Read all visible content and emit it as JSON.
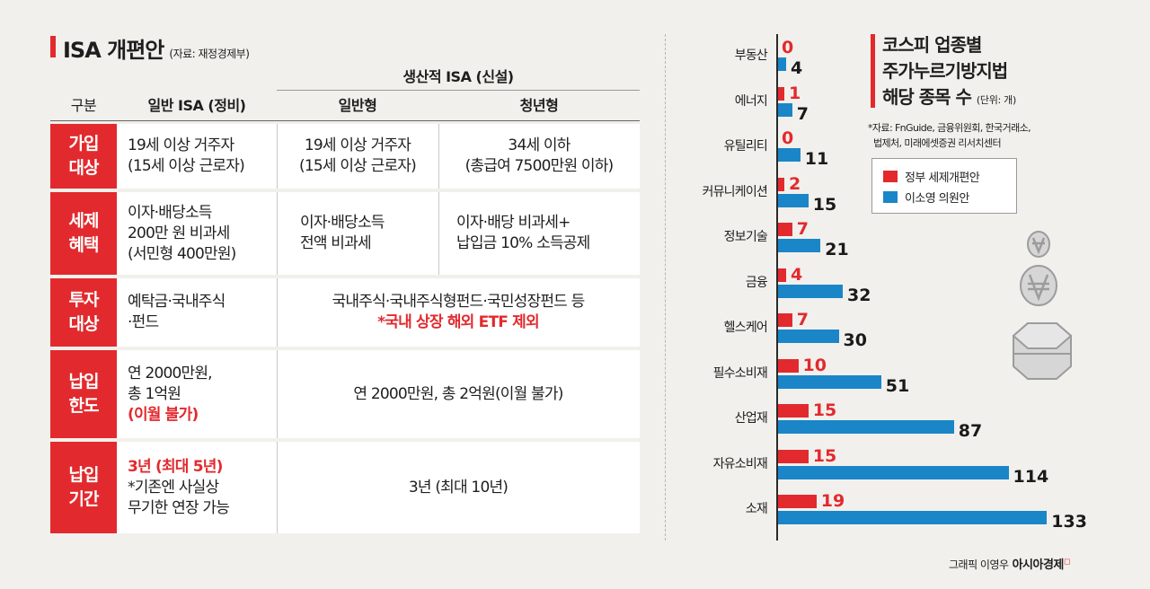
{
  "isa_table": {
    "title": "ISA 개편안",
    "source": "(자료: 재정경제부)",
    "group_header": "생산적 ISA (신설)",
    "headers": [
      "구분",
      "일반 ISA (정비)",
      "일반형",
      "청년형"
    ],
    "rows": [
      {
        "label": "가입\n대상",
        "general": [
          "19세 이상 거주자",
          "(15세 이상 근로자)"
        ],
        "prod_general": [
          "19세 이상 거주자",
          "(15세 이상 근로자)"
        ],
        "prod_youth": [
          "34세 이하",
          "(총급여 7500만원 이하)"
        ]
      },
      {
        "label": "세제\n혜택",
        "general": [
          "이자·배당소득",
          "200만 원 비과세",
          "(서민형 400만원)"
        ],
        "prod_general": [
          "이자·배당소득",
          "전액 비과세"
        ],
        "prod_youth": [
          "이자·배당 비과세+",
          "납입금 10% 소득공제"
        ]
      },
      {
        "label": "투자\n대상",
        "general": [
          "예탁금·국내주식",
          "·펀드"
        ],
        "merged": "국내주식·국내주식형펀드·국민성장펀드 등",
        "merged_note": "*국내 상장 해외 ETF 제외"
      },
      {
        "label": "납입\n한도",
        "general": [
          "연 2000만원,",
          "총 1억원"
        ],
        "general_note": "(이월 불가)",
        "merged": "연 2000만원, 총 2억원(이월 불가)"
      },
      {
        "label": "납입\n기간",
        "general_note": "3년 (최대 5년)",
        "general": [
          "*기존엔 사실상",
          "무기한 연장 가능"
        ],
        "merged": "3년 (최대 10년)"
      }
    ]
  },
  "chart_data": {
    "type": "bar",
    "title": [
      "코스피 업종별",
      "주가누르기방지법",
      "해당 종목 수"
    ],
    "unit": "(단위: 개)",
    "source": [
      "*자료: FnGuide, 금융위원회, 한국거래소,",
      "법제처, 미래에셋증권 리서치센터"
    ],
    "orientation": "horizontal",
    "categories": [
      "부동산",
      "에너지",
      "유틸리티",
      "커뮤니케이션",
      "정보기술",
      "금융",
      "헬스케어",
      "필수소비재",
      "산업재",
      "자유소비재",
      "소재"
    ],
    "series": [
      {
        "name": "정부 세제개편안",
        "color": "#e22a2e",
        "values": [
          0,
          1,
          0,
          2,
          7,
          4,
          7,
          10,
          15,
          15,
          19
        ]
      },
      {
        "name": "이소영 의원안",
        "color": "#1a86c8",
        "values": [
          4,
          7,
          11,
          15,
          21,
          32,
          30,
          51,
          87,
          114,
          133
        ]
      }
    ],
    "legend_position": "top-right",
    "grid": false
  },
  "credit": {
    "text": "그래픽 이영우",
    "brand": "아시아경제"
  }
}
